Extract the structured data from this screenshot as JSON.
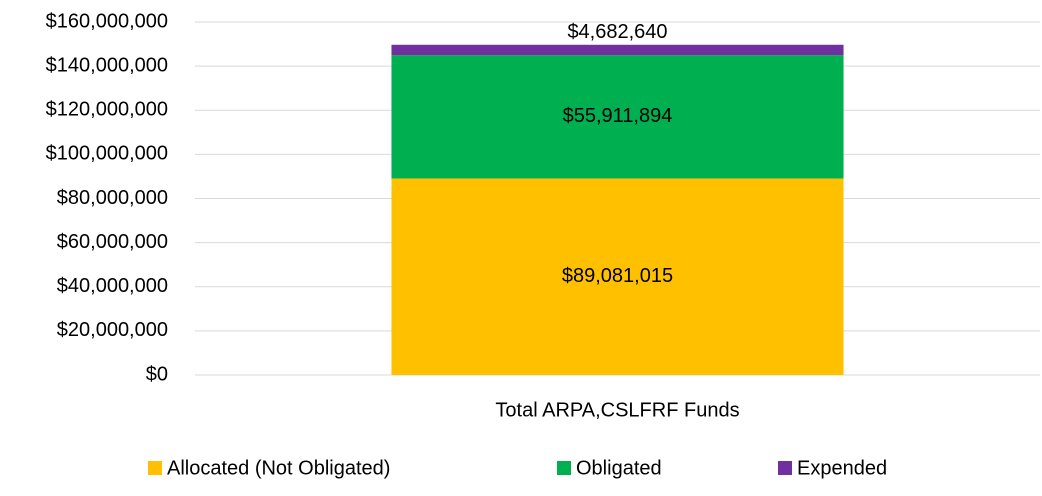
{
  "chart_data": {
    "type": "stacked_bar",
    "categories": [
      "Total ARPA,CSLFRF Funds"
    ],
    "series": [
      {
        "name": "Allocated (Not Obligated)",
        "color": "#FFC000",
        "values": [
          89081015
        ],
        "value_labels": [
          "$89,081,015"
        ]
      },
      {
        "name": "Obligated",
        "color": "#00B050",
        "values": [
          55911894
        ],
        "value_labels": [
          "$55,911,894"
        ]
      },
      {
        "name": "Expended",
        "color": "#7030A0",
        "values": [
          4682640
        ],
        "value_labels": [
          "$4,682,640"
        ]
      }
    ],
    "ylim": [
      0,
      160000000
    ],
    "yticks": [
      {
        "value": 0,
        "label": "$0"
      },
      {
        "value": 20000000,
        "label": "$20,000,000"
      },
      {
        "value": 40000000,
        "label": "$40,000,000"
      },
      {
        "value": 60000000,
        "label": "$60,000,000"
      },
      {
        "value": 80000000,
        "label": "$80,000,000"
      },
      {
        "value": 100000000,
        "label": "$100,000,000"
      },
      {
        "value": 120000000,
        "label": "$120,000,000"
      },
      {
        "value": 140000000,
        "label": "$140,000,000"
      },
      {
        "value": 160000000,
        "label": "$160,000,000"
      }
    ],
    "grid": true,
    "legend": "bottom"
  }
}
